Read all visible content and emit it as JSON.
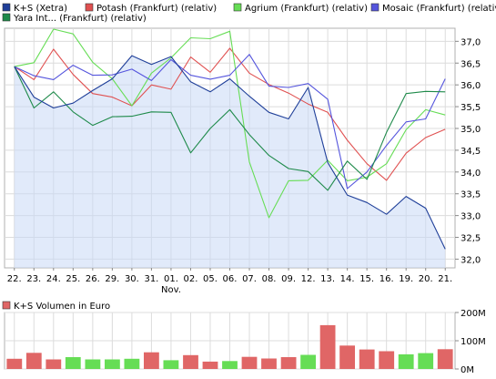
{
  "chart_data": [
    {
      "type": "line",
      "categories": [
        "22.",
        "23.",
        "24.",
        "25.",
        "26.",
        "29.",
        "30.",
        "31.",
        "01.",
        "02.",
        "05.",
        "06.",
        "07.",
        "08.",
        "09.",
        "12.",
        "13.",
        "14.",
        "15.",
        "16.",
        "19.",
        "20.",
        "21."
      ],
      "x_sublabel": {
        "category": "01.",
        "text": "Nov."
      },
      "ylim": [
        31.8,
        37.3
      ],
      "y_ticks": [
        "32,0",
        "32,5",
        "33,0",
        "33,5",
        "34,0",
        "34,5",
        "35,0",
        "35,5",
        "36,0",
        "36,5",
        "37,0"
      ],
      "grid": true,
      "legend_position": "top-left",
      "series": [
        {
          "name": "K+S (Xetra)",
          "color": "#1f3f99",
          "area": true,
          "values": [
            36.42,
            35.72,
            35.47,
            35.58,
            35.87,
            36.14,
            36.67,
            36.47,
            36.65,
            36.07,
            35.84,
            36.14,
            35.74,
            35.37,
            35.22,
            35.94,
            34.22,
            33.47,
            33.3,
            33.03,
            33.44,
            33.17,
            32.23
          ]
        },
        {
          "name": "Potash (Frankfurt) (relativ)",
          "color": "#e05050",
          "values": [
            36.42,
            36.12,
            36.82,
            36.24,
            35.8,
            35.72,
            35.52,
            36.0,
            35.9,
            36.64,
            36.29,
            36.84,
            36.27,
            36.01,
            35.81,
            35.56,
            35.37,
            34.73,
            34.19,
            33.81,
            34.43,
            34.79,
            34.98
          ]
        },
        {
          "name": "Agrium (Frankfurt) (relativ)",
          "color": "#66dd55",
          "values": [
            36.42,
            36.51,
            37.28,
            37.17,
            36.52,
            36.14,
            35.52,
            36.27,
            36.62,
            37.08,
            37.06,
            37.23,
            34.23,
            32.95,
            33.8,
            33.81,
            34.27,
            33.8,
            33.88,
            34.19,
            34.97,
            35.43,
            35.31
          ]
        },
        {
          "name": "Mosaic (Frankfurt) (relativ)",
          "color": "#5555dd",
          "values": [
            36.42,
            36.21,
            36.12,
            36.45,
            36.22,
            36.23,
            36.36,
            36.1,
            36.58,
            36.22,
            36.13,
            36.22,
            36.7,
            35.97,
            35.94,
            36.03,
            35.67,
            33.62,
            34.0,
            34.61,
            35.15,
            35.22,
            36.14
          ]
        },
        {
          "name": "Yara Int... (Frankfurt) (relativ)",
          "color": "#1e8a4a",
          "values": [
            36.42,
            35.47,
            35.84,
            35.38,
            35.07,
            35.27,
            35.28,
            35.38,
            35.37,
            34.44,
            35.0,
            35.43,
            34.86,
            34.38,
            34.08,
            34.01,
            33.58,
            34.25,
            33.83,
            34.91,
            35.8,
            35.85,
            35.84
          ]
        }
      ]
    },
    {
      "type": "bar",
      "title": "K+S Volumen in Euro",
      "categories": [
        "22.",
        "23.",
        "24.",
        "25.",
        "26.",
        "29.",
        "30.",
        "31.",
        "01.",
        "02.",
        "05.",
        "06.",
        "07.",
        "08.",
        "09.",
        "12.",
        "13.",
        "14.",
        "15.",
        "16.",
        "19.",
        "20.",
        "21."
      ],
      "values": [
        36,
        57,
        34,
        42,
        34,
        34,
        36,
        59,
        31,
        49,
        26,
        28,
        43,
        37,
        42,
        50,
        155,
        83,
        69,
        63,
        52,
        56,
        70
      ],
      "bar_color_by_direction": {
        "up": "#66dd55",
        "down": "#e06666"
      },
      "directions": [
        "down",
        "down",
        "down",
        "up",
        "up",
        "up",
        "up",
        "down",
        "up",
        "down",
        "down",
        "up",
        "down",
        "down",
        "down",
        "up",
        "down",
        "down",
        "down",
        "down",
        "up",
        "up",
        "down"
      ],
      "unit": "M",
      "ylim": [
        0,
        200
      ],
      "y_ticks": [
        "0M",
        "100M",
        "200M"
      ],
      "legend_color": "#e06666",
      "grid": true
    }
  ]
}
